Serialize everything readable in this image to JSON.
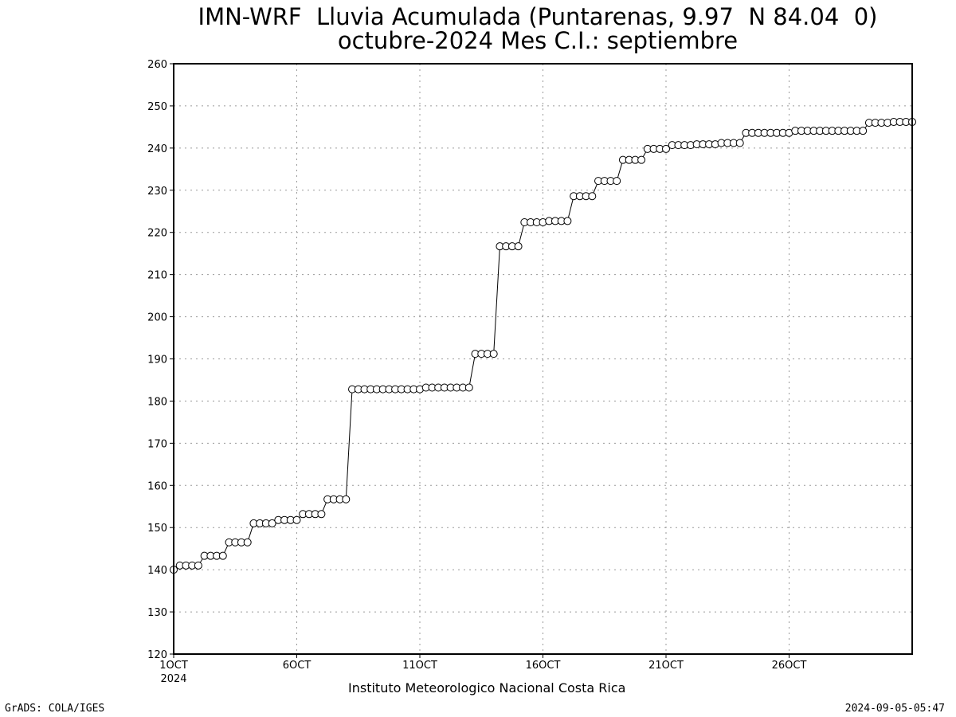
{
  "title_line1": "IMN-WRF  Lluvia Acumulada (Puntarenas, 9.97  N 84.04  0)",
  "title_line2": "octubre-2024 Mes C.I.: septiembre",
  "institute": "Instituto Meteorologico Nacional Costa Rica",
  "credit": "GrADS: COLA/IGES",
  "timestamp": "2024-09-05-05:47",
  "chart_data": {
    "type": "line",
    "title": "IMN-WRF  Lluvia Acumulada (Puntarenas, 9.97  N 84.04  0)",
    "subtitle": "octubre-2024 Mes C.I.: septiembre",
    "xlabel": "",
    "ylabel": "",
    "ylim": [
      120,
      260
    ],
    "yticks": [
      120,
      130,
      140,
      150,
      160,
      170,
      180,
      190,
      200,
      210,
      220,
      230,
      240,
      250,
      260
    ],
    "xlim": [
      1,
      31
    ],
    "xticks": [
      {
        "day": 1,
        "label": "1OCT",
        "sublabel": "2024"
      },
      {
        "day": 6,
        "label": "6OCT",
        "sublabel": ""
      },
      {
        "day": 11,
        "label": "11OCT",
        "sublabel": ""
      },
      {
        "day": 16,
        "label": "16OCT",
        "sublabel": ""
      },
      {
        "day": 21,
        "label": "21OCT",
        "sublabel": ""
      },
      {
        "day": 26,
        "label": "26OCT",
        "sublabel": ""
      }
    ],
    "grid": true,
    "marker": "open-circle",
    "series_color": "#000000",
    "series": [
      {
        "name": "",
        "x_start_day": 1,
        "x_step_days": 0.25,
        "values": [
          140.0,
          141.0,
          141.0,
          141.0,
          141.0,
          143.3,
          143.3,
          143.3,
          143.3,
          146.5,
          146.5,
          146.5,
          146.5,
          151.0,
          151.0,
          151.0,
          151.0,
          151.8,
          151.8,
          151.8,
          151.8,
          153.2,
          153.2,
          153.2,
          153.2,
          156.7,
          156.7,
          156.7,
          156.7,
          182.8,
          182.8,
          182.8,
          182.8,
          182.8,
          182.8,
          182.8,
          182.8,
          182.8,
          182.8,
          182.8,
          182.8,
          183.2,
          183.2,
          183.2,
          183.2,
          183.2,
          183.2,
          183.2,
          183.2,
          191.2,
          191.2,
          191.2,
          191.2,
          216.7,
          216.7,
          216.7,
          216.7,
          222.4,
          222.4,
          222.4,
          222.4,
          222.7,
          222.7,
          222.7,
          222.7,
          228.6,
          228.6,
          228.6,
          228.6,
          232.2,
          232.2,
          232.2,
          232.2,
          237.2,
          237.2,
          237.2,
          237.2,
          239.8,
          239.8,
          239.8,
          239.8,
          240.7,
          240.7,
          240.7,
          240.7,
          240.9,
          240.9,
          240.9,
          240.9,
          241.2,
          241.2,
          241.2,
          241.2,
          243.6,
          243.6,
          243.6,
          243.6,
          243.6,
          243.6,
          243.6,
          243.6,
          244.1,
          244.1,
          244.1,
          244.1,
          244.1,
          244.1,
          244.1,
          244.1,
          244.1,
          244.1,
          244.1,
          244.1,
          246.0,
          246.0,
          246.0,
          246.0,
          246.2,
          246.2,
          246.2,
          246.2
        ]
      }
    ]
  }
}
